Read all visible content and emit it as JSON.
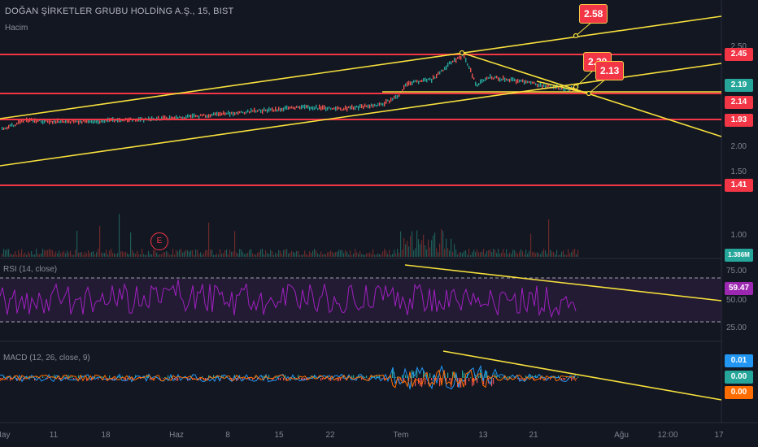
{
  "header": {
    "symbol_title": "DOĞAN ŞİRKETLER GRUBU HOLDİNG A.Ş., 15, BIST",
    "volume_label": "Hacim",
    "rsi_label": "RSI (14, close)",
    "macd_label": "MACD (12, 26, close, 9)"
  },
  "price_axis": {
    "ticks": [
      "2.50",
      "2.00",
      "1.50",
      "1.00"
    ]
  },
  "price_tags": [
    {
      "text": "2.45",
      "color": "#f23645"
    },
    {
      "text": "2.19",
      "color": "#26a69a"
    },
    {
      "text": "2.14",
      "color": "#f23645"
    },
    {
      "text": "1.93",
      "color": "#f23645"
    },
    {
      "text": "1.41",
      "color": "#f23645"
    },
    {
      "text": "1.386M",
      "color": "#26a69a"
    }
  ],
  "callouts": [
    {
      "text": "2.58"
    },
    {
      "text": "2.20"
    },
    {
      "text": "2.13"
    }
  ],
  "earnings_marker": "E",
  "rsi_axis": {
    "ticks": [
      "75.00",
      "50.00",
      "25.00"
    ],
    "value_tag": "59.47",
    "value_color": "#9c27b0"
  },
  "macd_axis": {
    "tags": [
      {
        "text": "0.01",
        "color": "#2196f3"
      },
      {
        "text": "0.00",
        "color": "#26a69a"
      },
      {
        "text": "0.00",
        "color": "#ff6d00"
      }
    ]
  },
  "time_axis": {
    "labels": [
      "May",
      "11",
      "18",
      "Haz",
      "8",
      "15",
      "22",
      "Tem",
      "13",
      "21",
      "Ağu",
      "12:00",
      "17"
    ]
  },
  "colors": {
    "background": "#131722",
    "trendline": "#f7e03c",
    "level": "#f23645",
    "up": "#26a69a",
    "down": "#ef5350",
    "rsi": "#9c27b0"
  }
}
